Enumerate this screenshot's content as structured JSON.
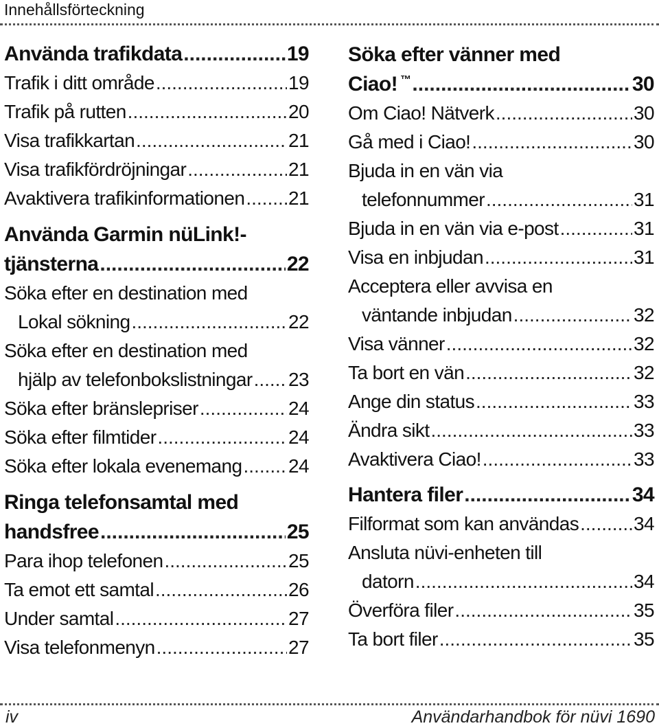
{
  "header": {
    "title": "Innehållsförteckning"
  },
  "left": {
    "s1": {
      "title": "Använda trafikdata",
      "page": "19"
    },
    "s1_items": [
      {
        "t": "Trafik i ditt område",
        "p": "19"
      },
      {
        "t": "Trafik på rutten",
        "p": "20"
      },
      {
        "t": "Visa trafikkartan",
        "p": "21"
      },
      {
        "t": "Visa trafikfördröjningar",
        "p": "21"
      },
      {
        "t": "Avaktivera trafikinformationen",
        "p": "21"
      }
    ],
    "s2": {
      "title_line1": "Använda Garmin nüLink!-",
      "title_line2": "tjänsterna",
      "page": "22"
    },
    "s2_items": [
      {
        "t1": "Söka efter en destination med",
        "t2": "Lokal sökning",
        "p": "22"
      },
      {
        "t1": "Söka efter en destination med",
        "t2": "hjälp av telefonbokslistningar",
        "p": "23"
      },
      {
        "t": "Söka efter bränslepriser",
        "p": "24"
      },
      {
        "t": "Söka efter filmtider",
        "p": "24"
      },
      {
        "t": "Söka efter lokala evenemang",
        "p": "24"
      }
    ],
    "s3": {
      "title_line1": "Ringa telefonsamtal med",
      "title_line2": "handsfree",
      "page": "25"
    },
    "s3_items": [
      {
        "t": "Para ihop telefonen",
        "p": "25"
      },
      {
        "t": "Ta emot ett samtal",
        "p": "26"
      },
      {
        "t": "Under samtal",
        "p": "27"
      },
      {
        "t": "Visa telefonmenyn",
        "p": "27"
      }
    ]
  },
  "right": {
    "s4": {
      "title_line1": "Söka efter vänner med",
      "title_line2": "Ciao!",
      "tm": "™",
      "page": "30"
    },
    "s4_items": [
      {
        "t": "Om Ciao! Nätverk",
        "p": "30"
      },
      {
        "t": "Gå med i Ciao!",
        "p": "30"
      },
      {
        "t1": "Bjuda in en vän via",
        "t2": "telefonnummer",
        "p": "31"
      },
      {
        "t": "Bjuda in en vän via e-post",
        "p": "31"
      },
      {
        "t": "Visa en inbjudan",
        "p": "31"
      },
      {
        "t1": "Acceptera eller avvisa en",
        "t2": "väntande inbjudan",
        "p": "32"
      },
      {
        "t": "Visa vänner",
        "p": "32"
      },
      {
        "t": "Ta bort en vän",
        "p": "32"
      },
      {
        "t": "Ange din status",
        "p": "33"
      },
      {
        "t": "Ändra sikt",
        "p": "33"
      },
      {
        "t": "Avaktivera Ciao!",
        "p": "33"
      }
    ],
    "s5": {
      "title": "Hantera filer",
      "page": "34"
    },
    "s5_items": [
      {
        "t": "Filformat som kan användas",
        "p": "34"
      },
      {
        "t1": "Ansluta nüvi-enheten till",
        "t2": "datorn",
        "p": "34"
      },
      {
        "t": "Överföra filer",
        "p": "35"
      },
      {
        "t": "Ta bort filer",
        "p": "35"
      }
    ]
  },
  "footer": {
    "page_label": "iv",
    "manual_title": "Användarhandbok för nüvi 1690"
  }
}
